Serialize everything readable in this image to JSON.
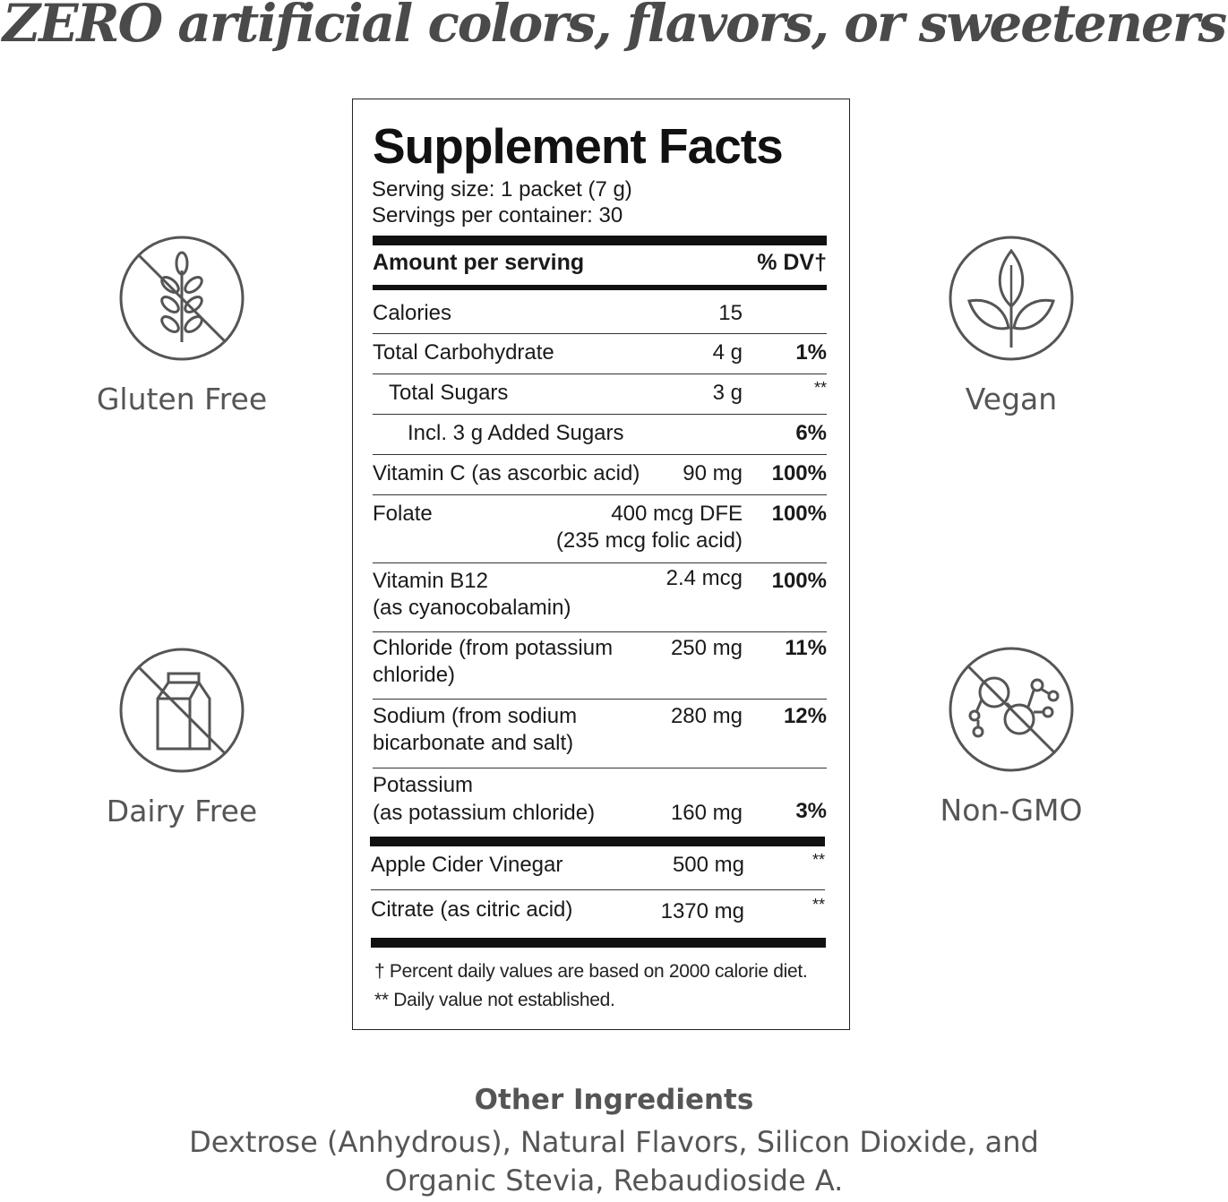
{
  "headline": "ZERO artificial colors, flavors, or sweeteners",
  "badges": {
    "gluten_free": {
      "label": "Gluten Free",
      "icon": "wheat-crossed-icon"
    },
    "vegan": {
      "label": "Vegan",
      "icon": "leaf-icon"
    },
    "dairy_free": {
      "label": "Dairy Free",
      "icon": "milk-carton-crossed-icon"
    },
    "non_gmo": {
      "label": "Non-GMO",
      "icon": "molecule-crossed-icon"
    }
  },
  "facts": {
    "title": "Supplement Facts",
    "serving_size": "Serving size: 1 packet (7 g)",
    "servings_per_container": "Servings per container: 30",
    "amount_header": "Amount per serving",
    "dv_header": "% DV†",
    "rows": [
      {
        "name": "Calories",
        "amount": "15",
        "dv": ""
      },
      {
        "name": "Total Carbohydrate",
        "amount": "4 g",
        "dv": "1%"
      },
      {
        "name": "Total Sugars",
        "amount": "3 g",
        "dv": "**"
      },
      {
        "name": "Incl. 3 g Added Sugars",
        "amount": "",
        "dv": "6%"
      },
      {
        "name": "Vitamin C (as ascorbic acid)",
        "amount": "90 mg",
        "dv": "100%"
      },
      {
        "name": "Folate",
        "amount": "400 mcg DFE",
        "amount2": "(235 mcg folic acid)",
        "dv": "100%"
      },
      {
        "name": "Vitamin B12",
        "name2": "(as cyanocobalamin)",
        "amount": "2.4 mcg",
        "dv": "100%"
      },
      {
        "name": "Chloride (from potassium",
        "name2": "chloride)",
        "amount": "250 mg",
        "dv": "11%"
      },
      {
        "name": "Sodium (from sodium",
        "name2": "bicarbonate and salt)",
        "amount": "280 mg",
        "dv": "12%"
      },
      {
        "name": "Potassium",
        "name2": "(as potassium chloride)",
        "amount": "160 mg",
        "dv": "3%"
      },
      {
        "name": "Apple Cider Vinegar",
        "amount": "500 mg",
        "dv": "**"
      },
      {
        "name": "Citrate (as citric acid)",
        "amount": "1370 mg",
        "dv": "**"
      }
    ],
    "footnote_1": "† Percent daily values are based on 2000 calorie diet.",
    "footnote_2": "** Daily value not established."
  },
  "other_ingredients": {
    "title": "Other Ingredients",
    "line_1": "Dextrose (Anhydrous), Natural Flavors, Silicon Dioxide, and",
    "line_2": "Organic Stevia, Rebaudioside A."
  },
  "colors": {
    "text_dark": "#111111",
    "text_gray": "#555555",
    "headline_gray": "#4a4a4a"
  }
}
